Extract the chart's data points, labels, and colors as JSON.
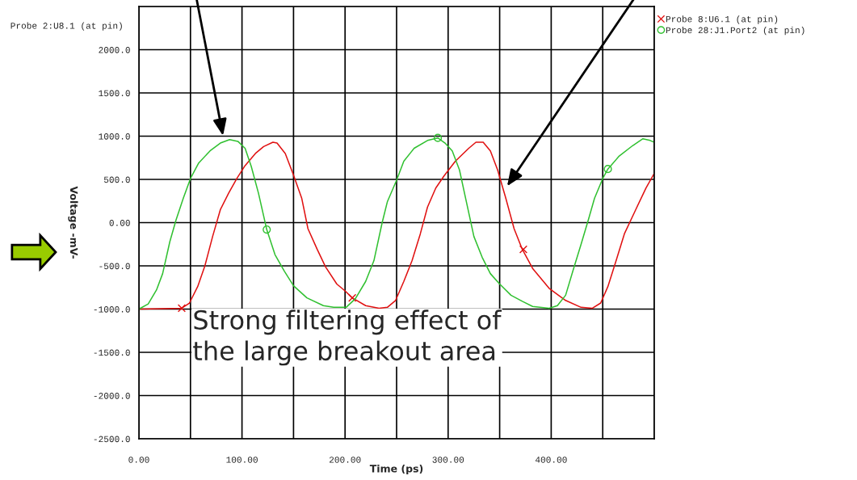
{
  "chart_data": {
    "type": "line",
    "xlabel": "Time (ps)",
    "ylabel": "Voltage -mV-",
    "xlim": [
      0,
      500
    ],
    "ylim": [
      -2500,
      2500
    ],
    "xticks": [
      {
        "value": 0,
        "label": "0.00"
      },
      {
        "value": 50,
        "label": null
      },
      {
        "value": 100,
        "label": "100.00"
      },
      {
        "value": 150,
        "label": null
      },
      {
        "value": 200,
        "label": "200.00"
      },
      {
        "value": 250,
        "label": null
      },
      {
        "value": 300,
        "label": "300.00"
      },
      {
        "value": 350,
        "label": null
      },
      {
        "value": 400,
        "label": "400.00"
      },
      {
        "value": 450,
        "label": null
      },
      {
        "value": 500,
        "label": null
      }
    ],
    "yticks": [
      {
        "value": -2500,
        "label": "-2500.0"
      },
      {
        "value": -2000,
        "label": "-2000.0"
      },
      {
        "value": -1500,
        "label": "-1500.0"
      },
      {
        "value": -1000,
        "label": "-1000.0"
      },
      {
        "value": -500,
        "label": "-500.0"
      },
      {
        "value": 0,
        "label": "0.00"
      },
      {
        "value": 500,
        "label": "500.0"
      },
      {
        "value": 1000,
        "label": "1000.0"
      },
      {
        "value": 1500,
        "label": "1500.0"
      },
      {
        "value": 2000,
        "label": "2000.0"
      },
      {
        "value": 2500,
        "label": null
      }
    ],
    "grid": true,
    "legend": "top right",
    "line_style": "solid",
    "series": [
      {
        "name": "Probe 8:U6.1 (at pin)",
        "color": "#e01010",
        "x": [
          0,
          41.5,
          49,
          57,
          64,
          71.5,
          79,
          87,
          95,
          103,
          113,
          121,
          130,
          134,
          142,
          150,
          158,
          164,
          173,
          181,
          192,
          200,
          207,
          220,
          233,
          241,
          249,
          257,
          265,
          273,
          280,
          288,
          296,
          307,
          320,
          327,
          334,
          341,
          348,
          356,
          364,
          372,
          382,
          398,
          414,
          429,
          440,
          448,
          455,
          463,
          471,
          482,
          492,
          500
        ],
        "values": [
          -1000,
          -990,
          -930,
          -740,
          -500,
          -160,
          150,
          340,
          510,
          660,
          800,
          880,
          930,
          920,
          800,
          550,
          280,
          -70,
          -310,
          -510,
          -710,
          -790,
          -870,
          -960,
          -990,
          -980,
          -900,
          -680,
          -440,
          -130,
          180,
          400,
          540,
          710,
          860,
          930,
          930,
          830,
          610,
          280,
          -70,
          -310,
          -530,
          -760,
          -900,
          -980,
          -990,
          -930,
          -740,
          -440,
          -130,
          150,
          400,
          570
        ]
      },
      {
        "name": "Probe 28:J1.Port2 (at pin)",
        "color": "#30c030",
        "x": [
          0,
          9,
          17,
          23,
          30,
          36,
          43,
          50,
          58,
          69,
          79,
          88,
          96,
          103,
          109,
          116,
          124,
          132,
          141,
          150,
          163,
          179,
          189,
          201,
          210,
          220,
          228,
          236,
          241,
          250,
          257,
          267,
          280,
          290,
          297,
          304,
          311,
          317,
          325,
          333,
          341,
          350,
          361,
          372,
          382,
          398,
          406,
          414,
          421,
          429,
          436,
          442,
          450,
          455,
          466,
          479,
          489,
          496,
          500
        ],
        "values": [
          -1000,
          -940,
          -780,
          -590,
          -220,
          30,
          280,
          510,
          690,
          830,
          920,
          960,
          940,
          860,
          650,
          340,
          -80,
          -370,
          -560,
          -730,
          -870,
          -960,
          -980,
          -980,
          -880,
          -680,
          -440,
          0,
          240,
          490,
          710,
          860,
          950,
          980,
          920,
          830,
          610,
          280,
          -160,
          -400,
          -590,
          -710,
          -840,
          -910,
          -970,
          -990,
          -960,
          -840,
          -560,
          -250,
          30,
          280,
          510,
          620,
          770,
          890,
          970,
          950,
          930
        ]
      },
      {
        "type": "scatter",
        "color": "#e01010",
        "marker": "cross",
        "x": [
          41.5,
          207,
          373
        ],
        "values": [
          -990,
          -870,
          -310
        ]
      },
      {
        "type": "scatter",
        "color": "#30c030",
        "marker": "circle",
        "x": [
          124,
          290,
          455
        ],
        "values": [
          -80,
          980,
          620
        ]
      }
    ],
    "annotations": [
      "Probe 2:U8.1 (at pin)",
      "Strong filtering effect of\nthe large breakout area"
    ]
  }
}
